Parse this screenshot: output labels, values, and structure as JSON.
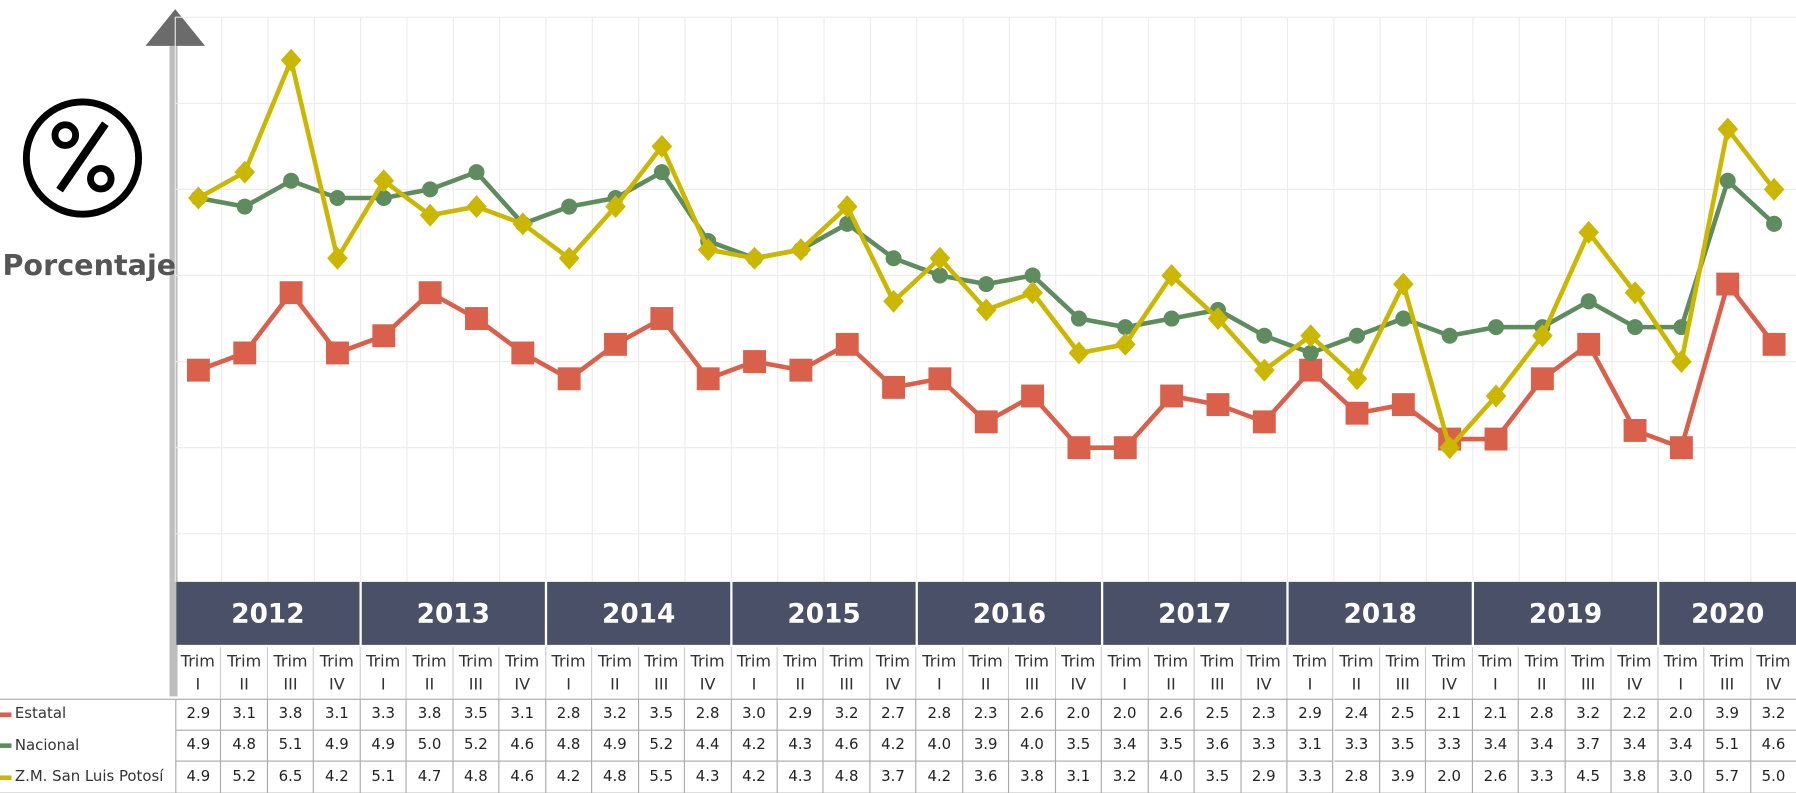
{
  "chart_data": {
    "type": "line",
    "y_axis_label": "Porcentaje",
    "categories": [
      "Trim I",
      "Trim II",
      "Trim III",
      "Trim IV",
      "Trim I",
      "Trim II",
      "Trim III",
      "Trim IV",
      "Trim I",
      "Trim II",
      "Trim III",
      "Trim IV",
      "Trim I",
      "Trim II",
      "Trim III",
      "Trim IV",
      "Trim I",
      "Trim II",
      "Trim III",
      "Trim IV",
      "Trim I",
      "Trim II",
      "Trim III",
      "Trim IV",
      "Trim I",
      "Trim II",
      "Trim III",
      "Trim IV",
      "Trim I",
      "Trim II",
      "Trim III",
      "Trim IV",
      "Trim I",
      "Trim III",
      "Trim IV"
    ],
    "category_groups": [
      {
        "label": "2012",
        "count": 4
      },
      {
        "label": "2013",
        "count": 4
      },
      {
        "label": "2014",
        "count": 4
      },
      {
        "label": "2015",
        "count": 4
      },
      {
        "label": "2016",
        "count": 4
      },
      {
        "label": "2017",
        "count": 4
      },
      {
        "label": "2018",
        "count": 4
      },
      {
        "label": "2019",
        "count": 4
      },
      {
        "label": "2020",
        "count": 3
      }
    ],
    "series": [
      {
        "name": "Estatal",
        "color": "#d9604a",
        "marker": "square",
        "values": [
          2.9,
          3.1,
          3.8,
          3.1,
          3.3,
          3.8,
          3.5,
          3.1,
          2.8,
          3.2,
          3.5,
          2.8,
          3.0,
          2.9,
          3.2,
          2.7,
          2.8,
          2.3,
          2.6,
          2.0,
          2.0,
          2.6,
          2.5,
          2.3,
          2.9,
          2.4,
          2.5,
          2.1,
          2.1,
          2.8,
          3.2,
          2.2,
          2.0,
          3.9,
          3.2
        ],
        "value_labels": [
          "2.9",
          "3.1",
          "3.8",
          "3.1",
          "3.3",
          "3.8",
          "3.5",
          "3.1",
          "2.8",
          "3.2",
          "3.5",
          "2.8",
          "3.0",
          "2.9",
          "3.2",
          "2.7",
          "2.8",
          "2.3",
          "2.6",
          "2.0",
          "2.0",
          "2.6",
          "2.5",
          "2.3",
          "2.9",
          "2.4",
          "2.5",
          "2.1",
          "2.1",
          "2.8",
          "3.2",
          "2.2",
          "2.0",
          "3.9",
          "3.2"
        ]
      },
      {
        "name": "Nacional",
        "color": "#5e8c5e",
        "marker": "circle",
        "values": [
          4.9,
          4.8,
          5.1,
          4.9,
          4.9,
          5.0,
          5.2,
          4.6,
          4.8,
          4.9,
          5.2,
          4.4,
          4.2,
          4.3,
          4.6,
          4.2,
          4.0,
          3.9,
          4.0,
          3.5,
          3.4,
          3.5,
          3.6,
          3.3,
          3.1,
          3.3,
          3.5,
          3.3,
          3.4,
          3.4,
          3.7,
          3.4,
          3.4,
          5.1,
          4.6
        ],
        "value_labels": [
          "4.9",
          "4.8",
          "5.1",
          "4.9",
          "4.9",
          "5.0",
          "5.2",
          "4.6",
          "4.8",
          "4.9",
          "5.2",
          "4.4",
          "4.2",
          "4.3",
          "4.6",
          "4.2",
          "4.0",
          "3.9",
          "4.0",
          "3.5",
          "3.4",
          "3.5",
          "3.6",
          "3.3",
          "3.1",
          "3.3",
          "3.5",
          "3.3",
          "3.4",
          "3.4",
          "3.7",
          "3.4",
          "3.4",
          "5.1",
          "4.6"
        ]
      },
      {
        "name": "Z.M. San Luis Potosí",
        "color": "#cbb700",
        "marker": "diamond",
        "values": [
          4.9,
          5.2,
          6.5,
          4.2,
          5.1,
          4.7,
          4.8,
          4.6,
          4.2,
          4.8,
          5.5,
          4.3,
          4.2,
          4.3,
          4.8,
          3.7,
          4.2,
          3.6,
          3.8,
          3.1,
          3.2,
          4.0,
          3.5,
          2.9,
          3.3,
          2.8,
          3.9,
          2.0,
          2.6,
          3.3,
          4.5,
          3.8,
          3.0,
          5.7,
          5.0
        ],
        "value_labels": [
          "4.9",
          "5.2",
          "6.5",
          "4.2",
          "5.1",
          "4.7",
          "4.8",
          "4.6",
          "4.2",
          "4.8",
          "5.5",
          "4.3",
          "4.2",
          "4.3",
          "4.8",
          "3.7",
          "4.2",
          "3.6",
          "3.8",
          "3.1",
          "3.2",
          "4.0",
          "3.5",
          "2.9",
          "3.3",
          "2.8",
          "3.9",
          "2.0",
          "2.6",
          "3.3",
          "4.5",
          "3.8",
          "3.0",
          "5.7",
          "5.0"
        ]
      }
    ],
    "ylim": [
      1,
      7
    ],
    "yticks": [
      1,
      2,
      3,
      4,
      5,
      6,
      7
    ],
    "grid": true
  }
}
